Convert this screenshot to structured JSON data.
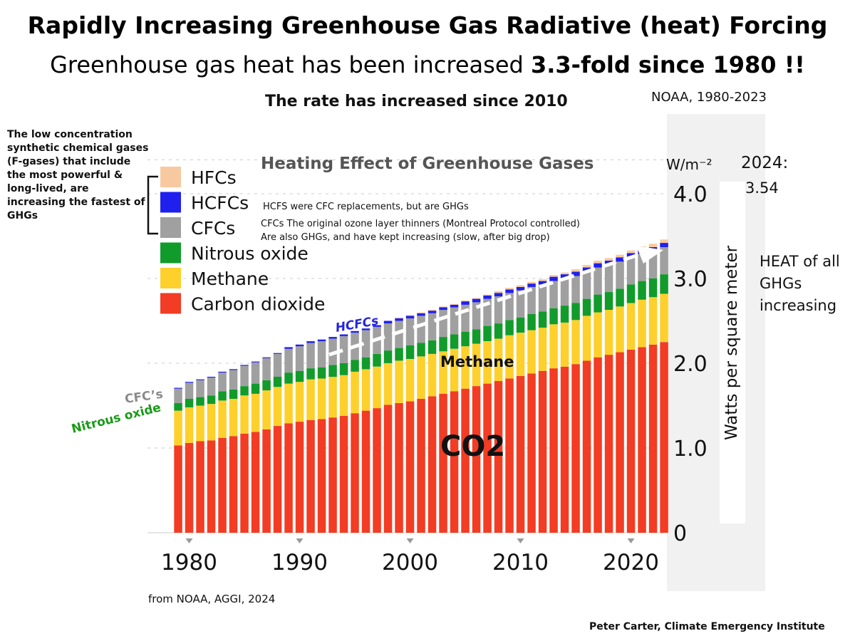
{
  "header": {
    "title": "Rapidly Increasing Greenhouse Gas Radiative (heat) Forcing",
    "subtitle_plain": "Greenhouse gas heat has been increased ",
    "subtitle_bold": "3.3-fold since 1980 !!",
    "rate_note": "The rate has increased since 2010",
    "source_top": "NOAA, 1980-2023"
  },
  "annotations": {
    "fgas_note": "The low concentration synthetic chemical gases  (F-gases) that  include the most powerful & long-lived, are increasing the fastest of GHGs",
    "hcfc_note": "HCFS were CFC replacements, but are GHGs",
    "cfc_note_1": "CFCs The original ozone layer thinners (Montreal Protocol controlled)",
    "cfc_note_2": "Are also GHGs, and have kept increasing (slow, after big drop)",
    "label_hcfcs": "HCFCs",
    "label_cfcs": "CFC’s",
    "label_nitrous": "Nitrous oxide",
    "label_methane": "Methane",
    "label_co2": "CO2",
    "year_2024_label": "2024:",
    "year_2024_value": "3.54",
    "heat_note": "HEAT of all GHGs increasing",
    "source_bottom": "from NOAA, AGGI, 2024",
    "credit": "Peter Carter, Climate Emergency Institute"
  },
  "colors": {
    "co2": "#f23c24",
    "methane": "#fdd02c",
    "nitrous": "#119b2b",
    "cfc": "#a0a0a0",
    "hcfc": "#2020ee",
    "hfc": "#f8c9a0",
    "hcfc_label": "#2424e0",
    "cfc_label": "#8a8a8a",
    "nitrous_label": "#1a9a1a"
  },
  "chart_data": {
    "type": "bar",
    "stacked": true,
    "title": "Heating  Effect of Greenhouse Gases",
    "unit": "W/m⁻²",
    "ylabel": "Watts per square meter",
    "ylim": [
      0,
      4.4
    ],
    "y_ticks": [
      "0",
      "1.0",
      "2.0",
      "3.0",
      "4.0"
    ],
    "x_ticks": [
      "1980",
      "1990",
      "2000",
      "2010",
      "2020"
    ],
    "legend": [
      "HFCs",
      "HCFCs",
      "CFCs",
      "Nitrous oxide",
      "Methane",
      "Carbon dioxide"
    ],
    "legend_position": "top-left",
    "grid": false,
    "x": [
      1979,
      1980,
      1981,
      1982,
      1983,
      1984,
      1985,
      1986,
      1987,
      1988,
      1989,
      1990,
      1991,
      1992,
      1993,
      1994,
      1995,
      1996,
      1997,
      1998,
      1999,
      2000,
      2001,
      2002,
      2003,
      2004,
      2005,
      2006,
      2007,
      2008,
      2009,
      2010,
      2011,
      2012,
      2013,
      2014,
      2015,
      2016,
      2017,
      2018,
      2019,
      2020,
      2021,
      2022,
      2023
    ],
    "series": [
      {
        "name": "Carbon dioxide",
        "values": [
          1.03,
          1.06,
          1.08,
          1.09,
          1.12,
          1.14,
          1.17,
          1.19,
          1.22,
          1.26,
          1.29,
          1.31,
          1.33,
          1.34,
          1.36,
          1.38,
          1.41,
          1.44,
          1.47,
          1.51,
          1.53,
          1.55,
          1.58,
          1.61,
          1.64,
          1.67,
          1.7,
          1.73,
          1.76,
          1.79,
          1.82,
          1.85,
          1.88,
          1.91,
          1.94,
          1.96,
          1.99,
          2.03,
          2.07,
          2.1,
          2.13,
          2.16,
          2.19,
          2.22,
          2.25
        ]
      },
      {
        "name": "Methane",
        "values": [
          0.41,
          0.42,
          0.42,
          0.43,
          0.44,
          0.44,
          0.45,
          0.45,
          0.46,
          0.46,
          0.47,
          0.47,
          0.48,
          0.48,
          0.48,
          0.48,
          0.49,
          0.49,
          0.49,
          0.49,
          0.5,
          0.5,
          0.5,
          0.5,
          0.5,
          0.5,
          0.5,
          0.5,
          0.5,
          0.5,
          0.51,
          0.51,
          0.51,
          0.51,
          0.52,
          0.52,
          0.52,
          0.53,
          0.53,
          0.53,
          0.54,
          0.55,
          0.56,
          0.56,
          0.57
        ]
      },
      {
        "name": "Nitrous oxide",
        "values": [
          0.09,
          0.1,
          0.1,
          0.1,
          0.11,
          0.11,
          0.11,
          0.12,
          0.12,
          0.12,
          0.13,
          0.13,
          0.13,
          0.13,
          0.14,
          0.14,
          0.14,
          0.14,
          0.15,
          0.15,
          0.15,
          0.16,
          0.16,
          0.16,
          0.17,
          0.17,
          0.17,
          0.17,
          0.18,
          0.18,
          0.18,
          0.18,
          0.19,
          0.19,
          0.19,
          0.2,
          0.2,
          0.2,
          0.21,
          0.21,
          0.21,
          0.22,
          0.22,
          0.22,
          0.23
        ]
      },
      {
        "name": "CFCs",
        "values": [
          0.17,
          0.19,
          0.2,
          0.21,
          0.22,
          0.23,
          0.24,
          0.25,
          0.26,
          0.27,
          0.28,
          0.29,
          0.3,
          0.31,
          0.31,
          0.32,
          0.32,
          0.32,
          0.32,
          0.32,
          0.32,
          0.32,
          0.32,
          0.32,
          0.32,
          0.32,
          0.32,
          0.32,
          0.32,
          0.32,
          0.32,
          0.32,
          0.32,
          0.32,
          0.32,
          0.32,
          0.32,
          0.32,
          0.32,
          0.32,
          0.32,
          0.32,
          0.32,
          0.32,
          0.32
        ]
      },
      {
        "name": "HCFCs",
        "values": [
          0.01,
          0.01,
          0.01,
          0.01,
          0.01,
          0.01,
          0.01,
          0.01,
          0.01,
          0.01,
          0.02,
          0.02,
          0.02,
          0.02,
          0.02,
          0.02,
          0.02,
          0.02,
          0.02,
          0.03,
          0.03,
          0.03,
          0.03,
          0.03,
          0.03,
          0.03,
          0.04,
          0.04,
          0.04,
          0.04,
          0.04,
          0.04,
          0.04,
          0.04,
          0.05,
          0.05,
          0.05,
          0.05,
          0.05,
          0.05,
          0.05,
          0.05,
          0.05,
          0.05,
          0.05
        ]
      },
      {
        "name": "HFCs",
        "values": [
          0.0,
          0.0,
          0.0,
          0.0,
          0.0,
          0.0,
          0.0,
          0.0,
          0.0,
          0.0,
          0.0,
          0.0,
          0.0,
          0.0,
          0.0,
          0.0,
          0.0,
          0.0,
          0.0,
          0.0,
          0.01,
          0.01,
          0.01,
          0.01,
          0.01,
          0.01,
          0.01,
          0.01,
          0.01,
          0.02,
          0.02,
          0.02,
          0.02,
          0.02,
          0.02,
          0.02,
          0.03,
          0.03,
          0.03,
          0.03,
          0.03,
          0.03,
          0.04,
          0.04,
          0.04
        ]
      }
    ]
  }
}
